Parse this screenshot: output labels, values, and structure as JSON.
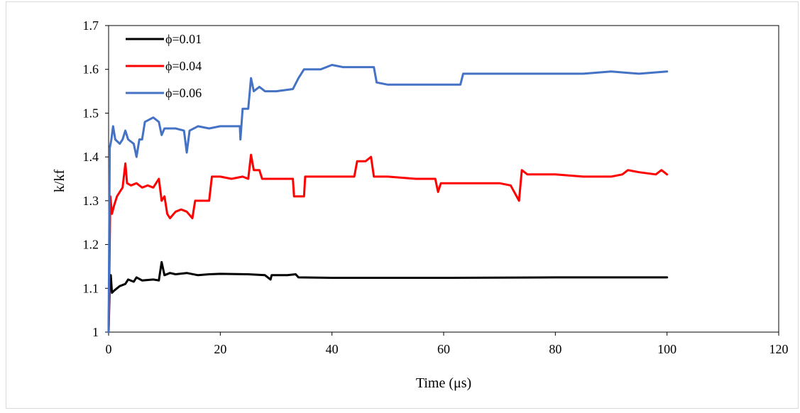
{
  "chart_data": {
    "type": "line",
    "title": "",
    "xlabel": "Time (μs)",
    "ylabel": "k/kf",
    "xlim": [
      0,
      120
    ],
    "ylim": [
      1,
      1.7
    ],
    "xticks": [
      0,
      20,
      40,
      60,
      80,
      100,
      120
    ],
    "yticks": [
      1,
      1.1,
      1.2,
      1.3,
      1.4,
      1.5,
      1.6,
      1.7
    ],
    "xtick_labels": [
      "0",
      "20",
      "40",
      "60",
      "80",
      "100",
      "120"
    ],
    "ytick_labels": [
      "1",
      "1.1",
      "1.2",
      "1.3",
      "1.4",
      "1.5",
      "1.6",
      "1.7"
    ],
    "grid": false,
    "legend_position": "top-left",
    "series": [
      {
        "name": "ϕ=0.01",
        "color": "#000000",
        "points": [
          [
            0,
            1.0
          ],
          [
            0.2,
            1.11
          ],
          [
            0.4,
            1.13
          ],
          [
            0.6,
            1.09
          ],
          [
            1.0,
            1.095
          ],
          [
            1.5,
            1.1
          ],
          [
            2,
            1.105
          ],
          [
            3,
            1.11
          ],
          [
            3.5,
            1.12
          ],
          [
            4.5,
            1.115
          ],
          [
            5,
            1.125
          ],
          [
            6,
            1.118
          ],
          [
            8,
            1.12
          ],
          [
            9,
            1.118
          ],
          [
            9.5,
            1.16
          ],
          [
            10,
            1.13
          ],
          [
            11,
            1.135
          ],
          [
            12,
            1.132
          ],
          [
            14,
            1.135
          ],
          [
            16,
            1.13
          ],
          [
            18,
            1.132
          ],
          [
            20,
            1.133
          ],
          [
            25,
            1.132
          ],
          [
            28,
            1.13
          ],
          [
            29,
            1.12
          ],
          [
            29.2,
            1.13
          ],
          [
            32,
            1.13
          ],
          [
            33.5,
            1.132
          ],
          [
            34,
            1.125
          ],
          [
            40,
            1.124
          ],
          [
            60,
            1.124
          ],
          [
            80,
            1.125
          ],
          [
            100,
            1.125
          ]
        ]
      },
      {
        "name": "ϕ=0.04",
        "color": "#ff0000",
        "points": [
          [
            0,
            1.0
          ],
          [
            0.3,
            1.31
          ],
          [
            0.6,
            1.27
          ],
          [
            1,
            1.29
          ],
          [
            1.5,
            1.31
          ],
          [
            2,
            1.32
          ],
          [
            2.5,
            1.33
          ],
          [
            3,
            1.385
          ],
          [
            3.3,
            1.34
          ],
          [
            4,
            1.335
          ],
          [
            5,
            1.34
          ],
          [
            6,
            1.33
          ],
          [
            7,
            1.335
          ],
          [
            8,
            1.33
          ],
          [
            9,
            1.35
          ],
          [
            9.5,
            1.3
          ],
          [
            10,
            1.31
          ],
          [
            10.5,
            1.27
          ],
          [
            11,
            1.26
          ],
          [
            12,
            1.275
          ],
          [
            13,
            1.28
          ],
          [
            14,
            1.275
          ],
          [
            15,
            1.26
          ],
          [
            15.5,
            1.3
          ],
          [
            16,
            1.3
          ],
          [
            18,
            1.3
          ],
          [
            18.5,
            1.355
          ],
          [
            20,
            1.355
          ],
          [
            22,
            1.35
          ],
          [
            24,
            1.355
          ],
          [
            25,
            1.35
          ],
          [
            25.5,
            1.405
          ],
          [
            26,
            1.37
          ],
          [
            27,
            1.37
          ],
          [
            27.5,
            1.35
          ],
          [
            30,
            1.35
          ],
          [
            33,
            1.35
          ],
          [
            33.2,
            1.31
          ],
          [
            35,
            1.31
          ],
          [
            35.2,
            1.355
          ],
          [
            40,
            1.355
          ],
          [
            44,
            1.355
          ],
          [
            44.5,
            1.39
          ],
          [
            46,
            1.39
          ],
          [
            47,
            1.4
          ],
          [
            47.5,
            1.355
          ],
          [
            50,
            1.355
          ],
          [
            55,
            1.35
          ],
          [
            58.5,
            1.35
          ],
          [
            59,
            1.32
          ],
          [
            59.5,
            1.34
          ],
          [
            65,
            1.34
          ],
          [
            70,
            1.34
          ],
          [
            72,
            1.335
          ],
          [
            73.5,
            1.3
          ],
          [
            74,
            1.37
          ],
          [
            75,
            1.36
          ],
          [
            80,
            1.36
          ],
          [
            85,
            1.355
          ],
          [
            90,
            1.355
          ],
          [
            92,
            1.36
          ],
          [
            93,
            1.37
          ],
          [
            95,
            1.365
          ],
          [
            98,
            1.36
          ],
          [
            99,
            1.37
          ],
          [
            100,
            1.36
          ]
        ]
      },
      {
        "name": "ϕ=0.06",
        "color": "#4472c4",
        "points": [
          [
            0,
            1.0
          ],
          [
            0.2,
            1.42
          ],
          [
            0.5,
            1.44
          ],
          [
            0.8,
            1.47
          ],
          [
            1.2,
            1.44
          ],
          [
            2,
            1.43
          ],
          [
            2.5,
            1.44
          ],
          [
            3,
            1.46
          ],
          [
            3.5,
            1.44
          ],
          [
            4.5,
            1.43
          ],
          [
            5,
            1.4
          ],
          [
            5.5,
            1.44
          ],
          [
            6,
            1.44
          ],
          [
            6.5,
            1.48
          ],
          [
            8,
            1.49
          ],
          [
            9,
            1.48
          ],
          [
            9.5,
            1.45
          ],
          [
            10,
            1.465
          ],
          [
            12,
            1.465
          ],
          [
            13.5,
            1.46
          ],
          [
            14,
            1.41
          ],
          [
            14.5,
            1.46
          ],
          [
            16,
            1.47
          ],
          [
            18,
            1.465
          ],
          [
            20,
            1.47
          ],
          [
            22,
            1.47
          ],
          [
            23.5,
            1.47
          ],
          [
            23.6,
            1.44
          ],
          [
            24,
            1.51
          ],
          [
            25,
            1.51
          ],
          [
            25.5,
            1.58
          ],
          [
            26,
            1.55
          ],
          [
            27,
            1.56
          ],
          [
            28,
            1.55
          ],
          [
            30,
            1.55
          ],
          [
            33,
            1.555
          ],
          [
            34,
            1.58
          ],
          [
            35,
            1.6
          ],
          [
            38,
            1.6
          ],
          [
            40,
            1.61
          ],
          [
            42,
            1.605
          ],
          [
            45,
            1.605
          ],
          [
            47.5,
            1.605
          ],
          [
            48,
            1.57
          ],
          [
            50,
            1.565
          ],
          [
            55,
            1.565
          ],
          [
            60,
            1.565
          ],
          [
            63,
            1.565
          ],
          [
            63.5,
            1.59
          ],
          [
            70,
            1.59
          ],
          [
            75,
            1.59
          ],
          [
            80,
            1.59
          ],
          [
            85,
            1.59
          ],
          [
            90,
            1.595
          ],
          [
            95,
            1.59
          ],
          [
            100,
            1.595
          ]
        ]
      }
    ]
  }
}
